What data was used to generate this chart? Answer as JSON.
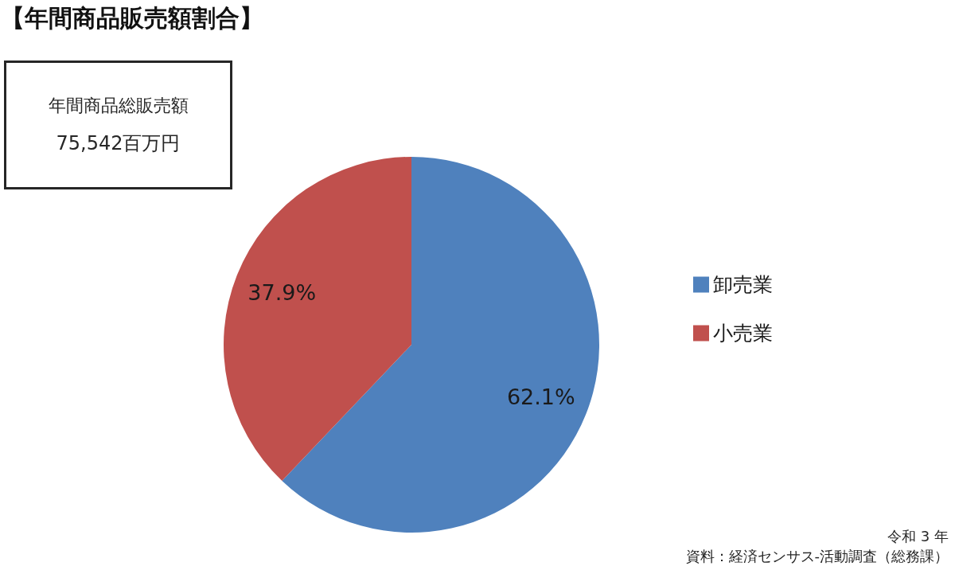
{
  "chart_data": {
    "type": "pie",
    "title": "【年間商品販売額割合】",
    "categories": [
      "卸売業",
      "小売業"
    ],
    "values": [
      62.1,
      37.9
    ],
    "colors": [
      "#4f81bd",
      "#c0504d"
    ],
    "value_labels": [
      "62.1%",
      "37.9%"
    ],
    "legend": "right",
    "annotations": [
      "年間商品総販売額",
      "75,542百万円",
      "令和 3 年",
      "資料：経済センサス-活動調査（総務課）"
    ]
  }
}
